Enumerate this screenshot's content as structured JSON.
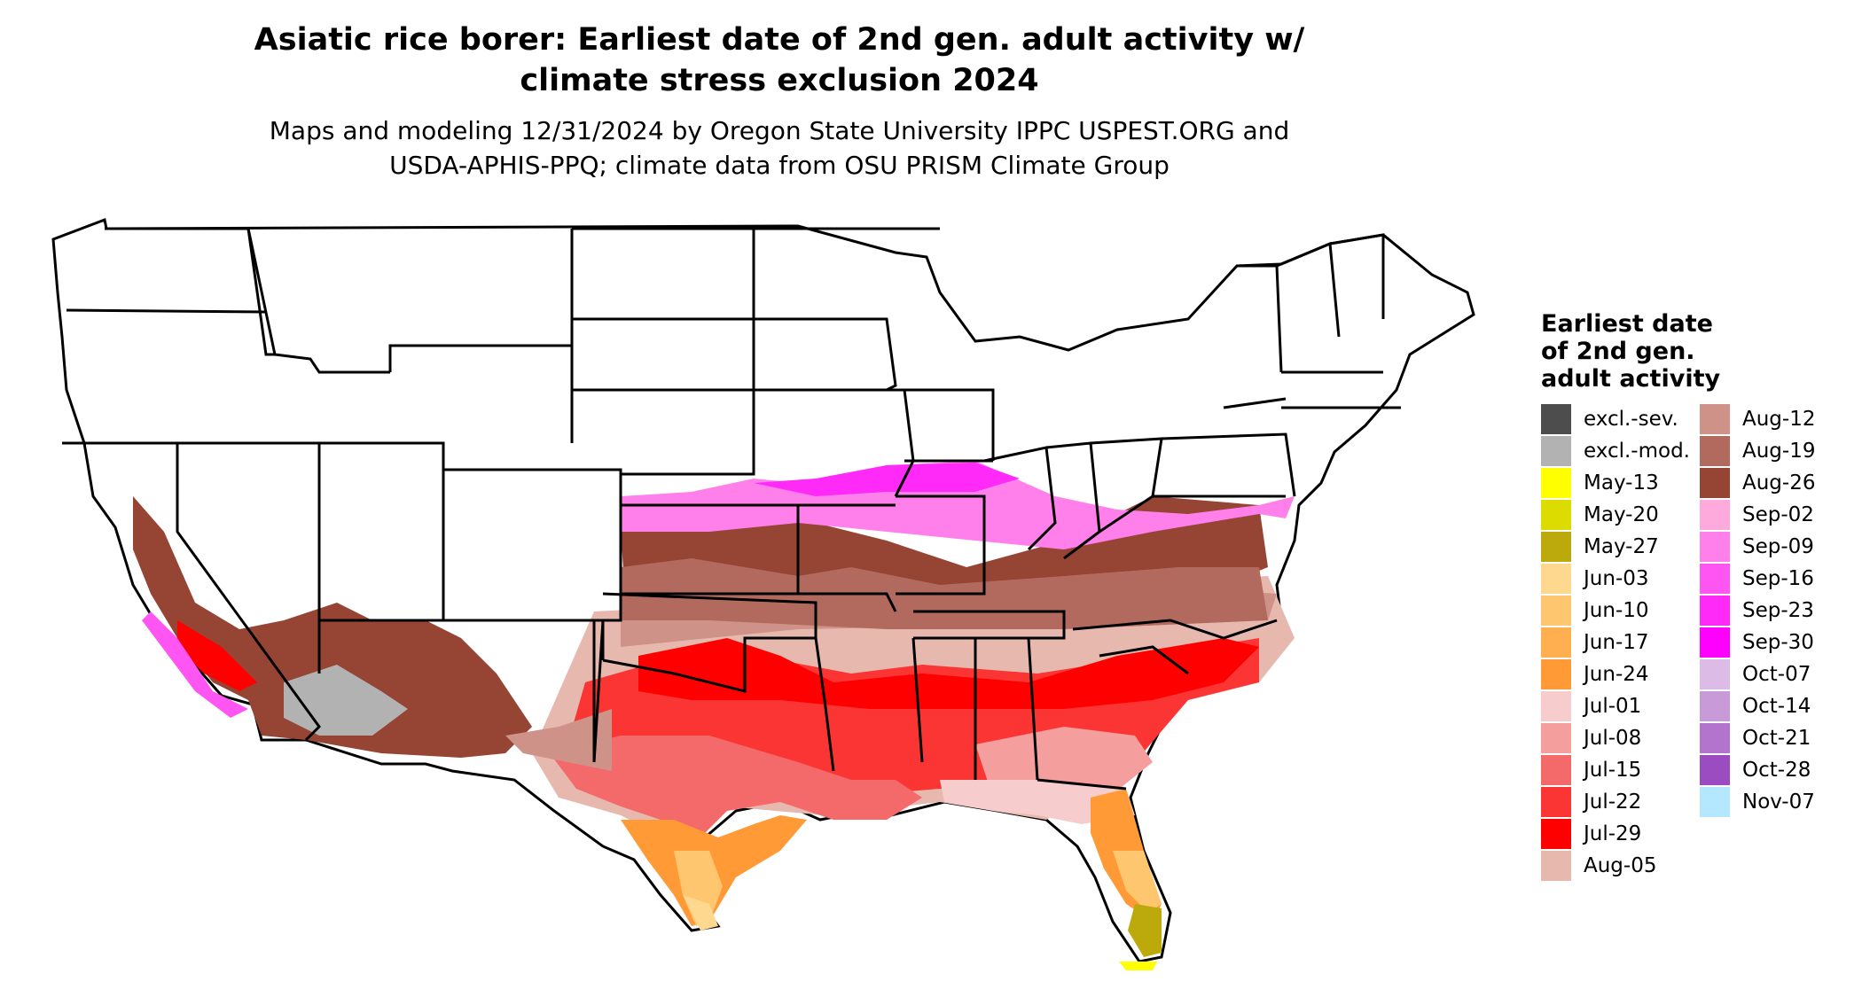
{
  "title": {
    "line1": "Asiatic rice borer: Earliest date of 2nd gen. adult activity w/",
    "line2": "climate stress exclusion 2024"
  },
  "subtitle": {
    "line1": "Maps and modeling 12/31/2024 by Oregon State University IPPC USPEST.ORG and",
    "line2": "USDA-APHIS-PPQ; climate data from OSU PRISM Climate Group"
  },
  "legend": {
    "title_lines": [
      "Earliest date",
      "of 2nd gen.",
      "adult activity"
    ],
    "items": [
      {
        "label": "excl.-sev.",
        "color": "#4d4d4d"
      },
      {
        "label": "excl.-mod.",
        "color": "#b2b2b2"
      },
      {
        "label": "May-13",
        "color": "#ffff00"
      },
      {
        "label": "May-20",
        "color": "#dcdc00"
      },
      {
        "label": "May-27",
        "color": "#bcaa0c"
      },
      {
        "label": "Jun-03",
        "color": "#ffd890"
      },
      {
        "label": "Jun-10",
        "color": "#ffc670"
      },
      {
        "label": "Jun-17",
        "color": "#ffae50"
      },
      {
        "label": "Jun-24",
        "color": "#ff9a36"
      },
      {
        "label": "Jul-01",
        "color": "#f6cccc"
      },
      {
        "label": "Jul-08",
        "color": "#f49e9e"
      },
      {
        "label": "Jul-15",
        "color": "#f46a6a"
      },
      {
        "label": "Jul-22",
        "color": "#fb3434"
      },
      {
        "label": "Jul-29",
        "color": "#ff0000"
      },
      {
        "label": "Aug-05",
        "color": "#e6b8ae"
      },
      {
        "label": "Aug-12",
        "color": "#cf9288"
      },
      {
        "label": "Aug-19",
        "color": "#b36a5e"
      },
      {
        "label": "Aug-26",
        "color": "#964434"
      },
      {
        "label": "Sep-02",
        "color": "#ffaadd"
      },
      {
        "label": "Sep-09",
        "color": "#ff80ea"
      },
      {
        "label": "Sep-16",
        "color": "#ff55f2"
      },
      {
        "label": "Sep-23",
        "color": "#ff2af8"
      },
      {
        "label": "Sep-30",
        "color": "#ff00ff"
      },
      {
        "label": "Oct-07",
        "color": "#dcbce6"
      },
      {
        "label": "Oct-14",
        "color": "#c99ad8"
      },
      {
        "label": "Oct-21",
        "color": "#b274cc"
      },
      {
        "label": "Oct-28",
        "color": "#9a4cc0"
      },
      {
        "label": "Nov-07",
        "color": "#b4e8ff"
      }
    ]
  }
}
